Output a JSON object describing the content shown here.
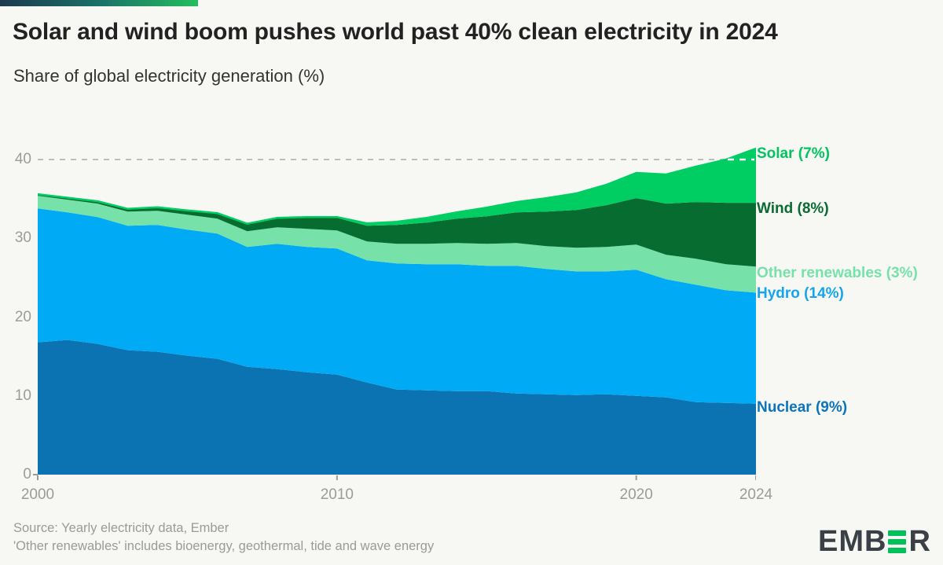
{
  "page": {
    "background": "#F7F7F4"
  },
  "header": {
    "title": "Solar and wind boom pushes world past 40% clean electricity in 2024",
    "subtitle": "Share of global electricity generation (%)"
  },
  "chart_data": {
    "type": "area",
    "stacked": true,
    "title": "Share of global electricity generation (%)",
    "xlabel": "",
    "ylabel": "",
    "ylim": [
      0,
      40
    ],
    "grid": {
      "dashed_gridline_at": 40,
      "gridline_color": "#BDBDBD",
      "gridline_overlay_color": "#FFFFFF"
    },
    "legend_position": "right-edge-callouts",
    "axis_color": "#9B9B9B",
    "x": [
      2000,
      2001,
      2002,
      2003,
      2004,
      2005,
      2006,
      2007,
      2008,
      2009,
      2010,
      2011,
      2012,
      2013,
      2014,
      2015,
      2016,
      2017,
      2018,
      2019,
      2020,
      2021,
      2022,
      2023,
      2024
    ],
    "x_ticks": [
      "2000",
      "2010",
      "2020",
      "2024"
    ],
    "x_tick_years": [
      2000,
      2010,
      2020,
      2024
    ],
    "y_ticks": [
      "0",
      "10",
      "20",
      "30",
      "40"
    ],
    "y_tick_values": [
      0,
      10,
      20,
      30,
      40
    ],
    "series": [
      {
        "name": "Nuclear",
        "label": "Nuclear (9%)",
        "color": "#0B73B2",
        "label_color": "#0B74BA",
        "callout_value": 8.48,
        "values": [
          16.8,
          17.1,
          16.6,
          15.8,
          15.6,
          15.1,
          14.7,
          13.7,
          13.4,
          13.0,
          12.7,
          11.7,
          10.8,
          10.7,
          10.6,
          10.6,
          10.3,
          10.2,
          10.1,
          10.2,
          10.0,
          9.8,
          9.2,
          9.1,
          9.0
        ]
      },
      {
        "name": "Hydro",
        "label": "Hydro (14%)",
        "color": "#01AAF5",
        "label_color": "#14A5F0",
        "callout_value": 22.94,
        "values": [
          17.0,
          16.2,
          16.1,
          15.8,
          16.1,
          16.0,
          15.9,
          15.2,
          15.9,
          15.9,
          16.0,
          15.5,
          16.0,
          16.0,
          16.1,
          15.9,
          16.2,
          15.9,
          15.7,
          15.6,
          16.0,
          15.0,
          14.9,
          14.3,
          14.1
        ]
      },
      {
        "name": "Other renewables",
        "label": "Other renewables (3%)",
        "color": "#76E2AA",
        "label_color": "#76E2AA",
        "callout_value": 25.54,
        "values": [
          1.6,
          1.6,
          1.7,
          1.8,
          1.8,
          1.9,
          1.9,
          2.0,
          2.1,
          2.3,
          2.3,
          2.4,
          2.5,
          2.6,
          2.7,
          2.8,
          2.9,
          2.9,
          3.0,
          3.1,
          3.2,
          3.1,
          3.3,
          3.3,
          3.3
        ]
      },
      {
        "name": "Wind",
        "label": "Wind (8%)",
        "color": "#076C30",
        "label_color": "#0A6B33",
        "callout_value": 33.72,
        "values": [
          0.2,
          0.25,
          0.3,
          0.35,
          0.45,
          0.55,
          0.7,
          0.85,
          1.1,
          1.4,
          1.6,
          2.0,
          2.4,
          2.7,
          3.1,
          3.5,
          3.9,
          4.4,
          4.8,
          5.3,
          5.9,
          6.5,
          7.2,
          7.8,
          8.1
        ]
      },
      {
        "name": "Solar",
        "label": "Solar (7%)",
        "color": "#00CE62",
        "label_color": "#00C45F",
        "callout_value": 40.7,
        "values": [
          0.0,
          0.0,
          0.0,
          0.0,
          0.0,
          0.0,
          0.0,
          0.1,
          0.1,
          0.1,
          0.1,
          0.3,
          0.4,
          0.6,
          0.8,
          1.1,
          1.3,
          1.7,
          2.1,
          2.6,
          3.2,
          3.7,
          4.5,
          5.5,
          6.9
        ]
      }
    ]
  },
  "footer": {
    "source_line1": "Source: Yearly electricity data, Ember",
    "source_line2": "'Other renewables' includes bioenergy, geothermal, tide and wave energy",
    "logo": {
      "text": "EMBER",
      "prefix": "EMB",
      "suffix": "R",
      "bar_color": "#00C05A",
      "text_color": "#3A4045"
    }
  }
}
